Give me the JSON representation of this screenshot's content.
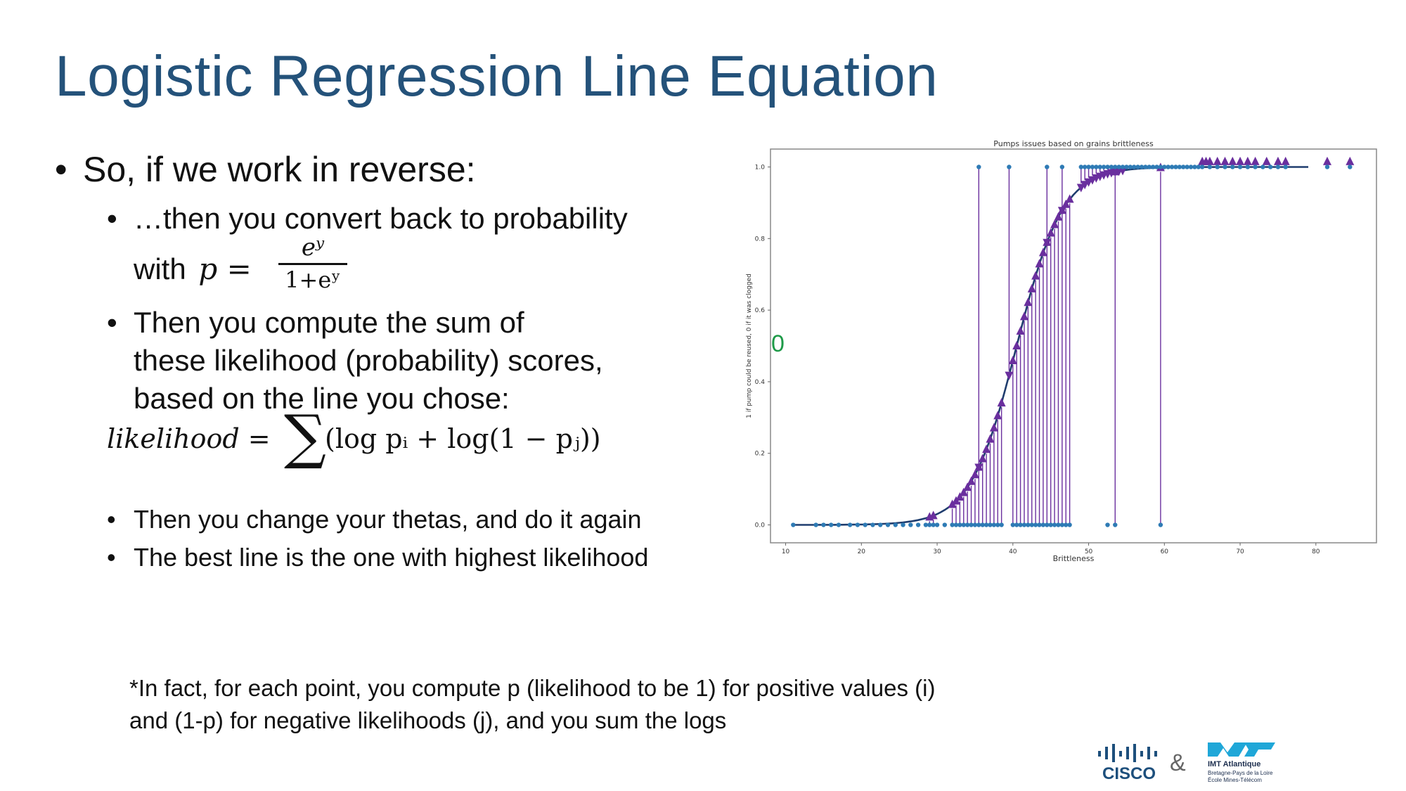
{
  "slide": {
    "title": "Logistic Regression Line Equation",
    "bullet_main": "So, if we work in reverse:",
    "sub1_line1": "…then you convert back to probability",
    "sub1_with": "with",
    "sub1_p_eq": "p =",
    "frac_num": "eʸ",
    "frac_den": "1+eʸ",
    "sub2_line1": "Then you compute the sum of",
    "sub2_line2": "these likelihood (probability) scores,",
    "sub2_line3": "based on the line you chose:",
    "lik_lhs": "likelihood =",
    "lik_sum": "∑",
    "lik_rhs": "(log pᵢ + log(1 − pⱼ))",
    "sub3": "Then you change your thetas, and do it again",
    "sub4": "The best line is the one with highest likelihood",
    "footnote_line1": "*In fact, for each point, you compute p (likelihood to be 1) for positive values (i)",
    "footnote_line2": "and (1-p) for negative likelihoods (j), and you sum the logs",
    "annotation_zero": "0",
    "bullet_char": "•"
  },
  "logos": {
    "cisco": "CISCO",
    "ampersand": "&",
    "imt_line1": "IMT Atlantique",
    "imt_line2": "Bretagne-Pays de la Loire",
    "imt_line3": "École Mines-Télécom"
  },
  "colors": {
    "title": "#24527a",
    "points": "#2e7bb5",
    "triangles": "#6a2f9e",
    "curve": "#1f3d6e",
    "green": "#1e9a48"
  },
  "chart_data": {
    "type": "scatter",
    "title": "Pumps issues based on grains brittleness",
    "xlabel": "Brittleness",
    "ylabel": "1 if pump could be reused, 0 if it was clogged",
    "xlim": [
      8,
      88
    ],
    "ylim": [
      -0.05,
      1.05
    ],
    "xticks": [
      10,
      20,
      30,
      40,
      50,
      60,
      70,
      80
    ],
    "yticks": [
      0.0,
      0.2,
      0.4,
      0.6,
      0.8,
      1.0
    ],
    "ytick_labels": [
      "0.0",
      "0.2",
      "0.4",
      "0.6",
      "0.8",
      "1.0"
    ],
    "logistic_curve": {
      "center": 40.5,
      "scale": 0.33
    },
    "points_y1_x": [
      35.5,
      39.5,
      44.5,
      46.5,
      49,
      49.5,
      50,
      50.5,
      51,
      51.5,
      52,
      52.5,
      53,
      53.5,
      54,
      54.5,
      55,
      55.5,
      56,
      56.5,
      57,
      57.5,
      58,
      58.5,
      59,
      59.5,
      60,
      60.5,
      61,
      61.5,
      62,
      62.5,
      63,
      63.5,
      64,
      64.5,
      65,
      66,
      67,
      68,
      69,
      70,
      71,
      72,
      73,
      74,
      75,
      76,
      81.5,
      84.5
    ],
    "points_y0_x": [
      11,
      14,
      15,
      16,
      17,
      18.5,
      19.5,
      20.5,
      21.5,
      22.5,
      23.5,
      24.5,
      25.5,
      26.5,
      27.5,
      28.5,
      29,
      29.5,
      30,
      31,
      32,
      32.5,
      33,
      33.5,
      34,
      34.5,
      35,
      35.5,
      36,
      36.5,
      37,
      37.5,
      38,
      38.5,
      40,
      40.5,
      41,
      41.5,
      42,
      42.5,
      43,
      43.5,
      44,
      44.5,
      45,
      45.5,
      46,
      46.5,
      47,
      47.5,
      52.5,
      53.5,
      59.5
    ],
    "residuals_up_x": [
      29,
      29.5,
      32,
      32.5,
      33,
      33.5,
      34,
      34.5,
      35,
      35.5,
      36,
      36.5,
      37,
      37.5,
      38,
      38.5,
      40,
      40.5,
      41,
      41.5,
      42,
      42.5,
      43,
      43.5,
      44,
      44.5,
      45,
      45.5,
      46,
      46.5,
      47,
      47.5,
      53.5,
      59.5
    ],
    "residuals_down_x": [
      35.5,
      39.5,
      44.5,
      46.5,
      49,
      49.5,
      50,
      50.5,
      51,
      51.5,
      52,
      52.5,
      53,
      53.5,
      54,
      54.5
    ],
    "markers_high_x": [
      65,
      65.5,
      66,
      67,
      68,
      69,
      70,
      71,
      72,
      73.5,
      75,
      76,
      81.5,
      84.5
    ]
  }
}
